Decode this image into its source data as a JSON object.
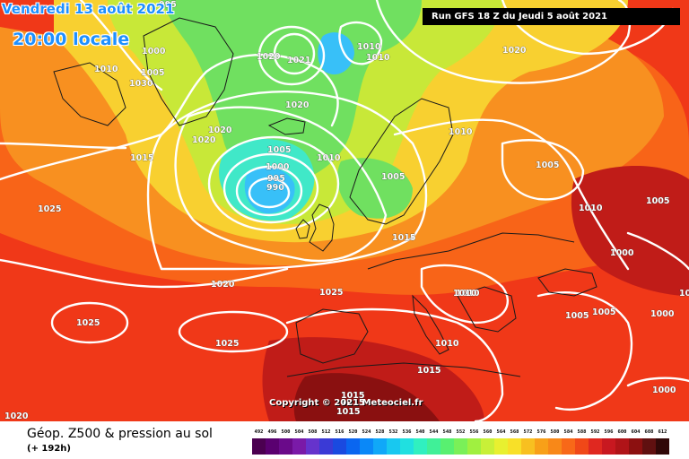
{
  "header": {
    "date": "Vendredi 13 août 2021",
    "time": "20:00 locale"
  },
  "run_info": "Run GFS 18 Z du Jeudi 5 août 2021",
  "copyright": "Copyright © 2021 Meteociel.fr",
  "footer": {
    "title": "Géop. Z500 & pression au sol",
    "subtitle": "(+ 192h)"
  },
  "scale": {
    "labels": [
      "492",
      "496",
      "500",
      "504",
      "508",
      "512",
      "516",
      "520",
      "524",
      "528",
      "532",
      "536",
      "540",
      "544",
      "548",
      "552",
      "556",
      "560",
      "564",
      "568",
      "572",
      "576",
      "580",
      "584",
      "588",
      "592",
      "596",
      "600",
      "604",
      "608",
      "612"
    ],
    "colors": [
      "#4b0050",
      "#5a0070",
      "#6a0a8a",
      "#7a1aa8",
      "#6633cc",
      "#3a3ad6",
      "#1a4ae0",
      "#0a66f0",
      "#0a88f8",
      "#10a8f8",
      "#18c8f0",
      "#20e0e0",
      "#30f0c0",
      "#40f098",
      "#58f070",
      "#7af058",
      "#a0f040",
      "#c8f038",
      "#e8f030",
      "#f8e028",
      "#f8c020",
      "#f8a018",
      "#f88818",
      "#f86818",
      "#f04818",
      "#e02820",
      "#c81820",
      "#b01418",
      "#8c1010",
      "#601010",
      "#300808"
    ]
  },
  "map": {
    "colors": {
      "hot": "#f03818",
      "warm": "#f86418",
      "mid": "#f89020",
      "yellow": "#f8d030",
      "greenyellow": "#c8e838",
      "green": "#70e060",
      "cyan": "#40e8c8",
      "blue": "#38c0f8",
      "deep": "#c01c18",
      "deepest": "#8a1010"
    },
    "isobar_labels": [
      "995",
      "1000",
      "1005",
      "1010",
      "1010",
      "1010",
      "1020",
      "1021",
      "1030",
      "1010",
      "1020",
      "1015",
      "1025",
      "1020",
      "1020",
      "1005",
      "1000",
      "995",
      "990",
      "1010",
      "1005",
      "1010",
      "1015",
      "1005",
      "1010",
      "1025",
      "1020",
      "1025",
      "1025",
      "1025",
      "1010",
      "1015",
      "1015",
      "1015",
      "1000",
      "1005",
      "1005",
      "1005",
      "1010",
      "1000",
      "1000",
      "1020",
      "1020",
      "1015"
    ]
  }
}
